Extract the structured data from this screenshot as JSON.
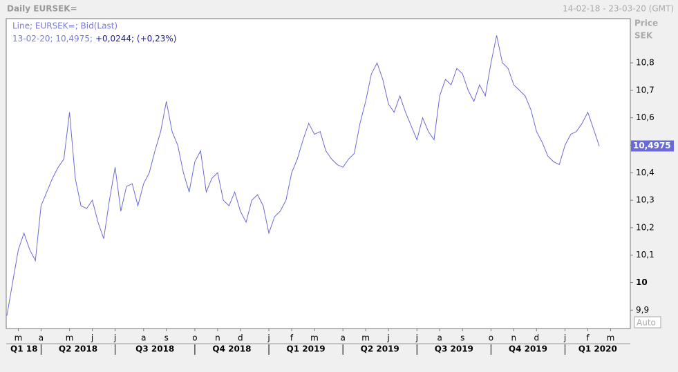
{
  "chart_data": {
    "type": "line",
    "header_left": "Daily EURSEK=",
    "header_right": "14-02-18 - 23-03-20 (GMT)",
    "legend_line1": "Line; EURSEK=; Bid(Last)",
    "legend_line2a": "13-02-20; 10,4975;",
    "legend_line2b": "+0,0244; (+0,23%)",
    "axis_label_1": "Price",
    "axis_label_2": "SEK",
    "auto_label": "Auto",
    "categories": [
      null,
      null,
      "m",
      null,
      null,
      null,
      "a",
      null,
      null,
      null,
      null,
      "m",
      null,
      null,
      null,
      "j",
      null,
      null,
      null,
      "j",
      null,
      null,
      null,
      null,
      "a",
      null,
      null,
      null,
      "s",
      null,
      null,
      null,
      null,
      "o",
      null,
      null,
      null,
      "n",
      null,
      null,
      null,
      "d",
      null,
      null,
      null,
      null,
      "j",
      null,
      null,
      null,
      "f",
      null,
      null,
      null,
      "m",
      null,
      null,
      null,
      null,
      "a",
      null,
      null,
      null,
      "m",
      null,
      null,
      null,
      "j",
      null,
      null,
      null,
      null,
      "j",
      null,
      null,
      null,
      "a",
      null,
      null,
      null,
      "s",
      null,
      null,
      null,
      null,
      "o",
      null,
      null,
      null,
      "n",
      null,
      null,
      null,
      "d",
      null,
      null,
      null,
      null,
      "j",
      null,
      null,
      null,
      "f",
      null,
      null,
      null,
      "m"
    ],
    "quarters": [
      "Q1 18",
      "Q2 2018",
      "Q3 2018",
      "Q4 2018",
      "Q1 2019",
      "Q2 2019",
      "Q3 2019",
      "Q4 2019",
      "Q1 2020"
    ],
    "series": [
      {
        "name": "EURSEK=",
        "color": "#6a6ad6",
        "values": [
          9.88,
          10.0,
          10.12,
          10.18,
          10.12,
          10.08,
          10.28,
          10.33,
          10.38,
          10.42,
          10.45,
          10.62,
          10.38,
          10.28,
          10.27,
          10.3,
          10.22,
          10.16,
          10.3,
          10.42,
          10.26,
          10.35,
          10.36,
          10.28,
          10.36,
          10.4,
          10.48,
          10.55,
          10.66,
          10.55,
          10.5,
          10.4,
          10.33,
          10.44,
          10.48,
          10.33,
          10.38,
          10.4,
          10.3,
          10.28,
          10.33,
          10.26,
          10.22,
          10.3,
          10.32,
          10.28,
          10.18,
          10.24,
          10.26,
          10.3,
          10.4,
          10.45,
          10.52,
          10.58,
          10.54,
          10.55,
          10.48,
          10.45,
          10.43,
          10.42,
          10.45,
          10.47,
          10.58,
          10.66,
          10.76,
          10.8,
          10.74,
          10.65,
          10.62,
          10.68,
          10.62,
          10.57,
          10.52,
          10.6,
          10.55,
          10.52,
          10.68,
          10.74,
          10.72,
          10.78,
          10.76,
          10.7,
          10.66,
          10.72,
          10.68,
          10.8,
          10.9,
          10.8,
          10.78,
          10.72,
          10.7,
          10.68,
          10.63,
          10.55,
          10.51,
          10.46,
          10.44,
          10.43,
          10.5,
          10.54,
          10.55,
          10.58,
          10.62,
          10.56,
          10.4975,
          null,
          null
        ]
      }
    ],
    "last_value": {
      "value": 10.4975,
      "label": "10,4975"
    },
    "ylim": [
      9.833,
      10.961
    ],
    "yticks": [
      {
        "value": 9.9,
        "label": "9,9"
      },
      10,
      {
        "value": 10.1,
        "label": "10,1"
      },
      {
        "value": 10.2,
        "label": "10,2"
      },
      {
        "value": 10.3,
        "label": "10,3"
      },
      {
        "value": 10.4,
        "label": "10,4"
      },
      {
        "value": 10.5,
        "label": "10,5"
      },
      {
        "value": 10.6,
        "label": "10,6"
      },
      {
        "value": 10.7,
        "label": "10,7"
      },
      {
        "value": 10.8,
        "label": "10,8"
      }
    ],
    "grid": false
  }
}
